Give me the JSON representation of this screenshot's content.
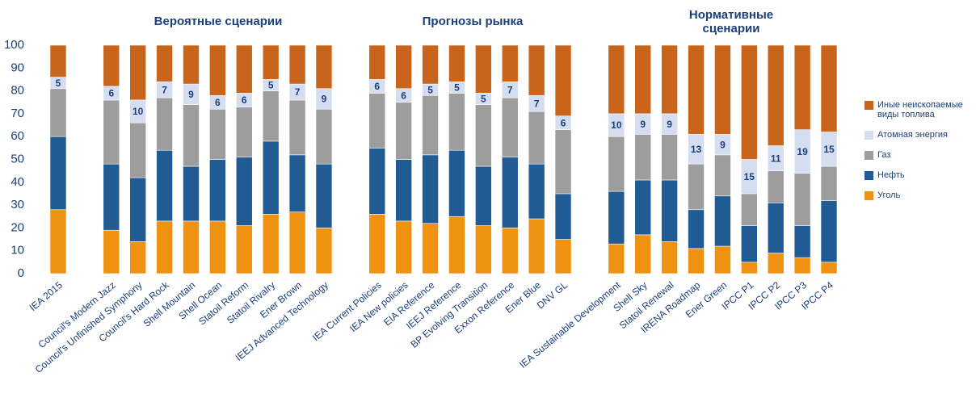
{
  "chart_data": {
    "type": "stacked_bar",
    "groups": [
      "Вероятные сценарии",
      "Прогнозы рынка",
      "Нормативные сценарии"
    ],
    "categories": [
      "IEA 2015",
      null,
      "Council's Modern Jazz",
      "Council's Unfinished Symphony",
      "Council's Hard Rock",
      "Shell Mountain",
      "Shell Ocean",
      "Statoil Reform",
      "Statoil Rivalry",
      "Ener Brown",
      "IEEJ Advanced Technology",
      null,
      "IEA Current Policies",
      "IEA New policies",
      "EIA Reference",
      "IEEJ Reference",
      "BP Evolving Transition",
      "Exxon Reference",
      "Ener Blue",
      "DNV GL",
      null,
      "IEA Sustainable Development",
      "Shell Sky",
      "Statoil Renewal",
      "IRENA Roadmap",
      "Ener Green",
      "IPCC P1",
      "IPCC P2",
      "IPCC P3",
      "IPCC P4"
    ],
    "series": [
      {
        "name": "Уголь",
        "color": "#ef9111",
        "values": [
          28,
          null,
          19,
          14,
          23,
          23,
          23,
          21,
          26,
          27,
          20,
          null,
          26,
          23,
          22,
          25,
          21,
          20,
          24,
          15,
          null,
          13,
          17,
          14,
          11,
          12,
          5,
          9,
          7,
          5
        ]
      },
      {
        "name": "Нефть",
        "color": "#215b93",
        "values": [
          32,
          null,
          29,
          28,
          31,
          24,
          27,
          30,
          32,
          25,
          28,
          null,
          29,
          27,
          30,
          29,
          26,
          31,
          24,
          20,
          null,
          23,
          24,
          27,
          17,
          22,
          16,
          22,
          14,
          27
        ]
      },
      {
        "name": "Газ",
        "color": "#9d9d9d",
        "values": [
          21,
          null,
          28,
          24,
          23,
          27,
          22,
          22,
          22,
          24,
          24,
          null,
          24,
          25,
          26,
          25,
          27,
          26,
          23,
          28,
          null,
          24,
          20,
          20,
          20,
          18,
          14,
          14,
          23,
          15
        ]
      },
      {
        "name": "Атомная энергия",
        "color": "#d5def0",
        "values": [
          5,
          null,
          6,
          10,
          7,
          9,
          6,
          6,
          5,
          7,
          9,
          null,
          6,
          6,
          5,
          5,
          5,
          7,
          7,
          6,
          null,
          10,
          9,
          9,
          13,
          9,
          15,
          11,
          19,
          15
        ]
      },
      {
        "name": "Иные неископаемые виды топлива",
        "color": "#c9641d",
        "values": [
          14,
          null,
          18,
          24,
          16,
          17,
          22,
          21,
          15,
          17,
          19,
          null,
          15,
          19,
          17,
          16,
          21,
          16,
          22,
          31,
          null,
          30,
          30,
          30,
          39,
          39,
          50,
          44,
          37,
          38
        ]
      }
    ],
    "labeled_series": 3,
    "ylim": [
      0,
      100
    ],
    "yticks": [
      0,
      10,
      20,
      30,
      40,
      50,
      60,
      70,
      80,
      90,
      100
    ],
    "grid": false,
    "legend": "right"
  }
}
